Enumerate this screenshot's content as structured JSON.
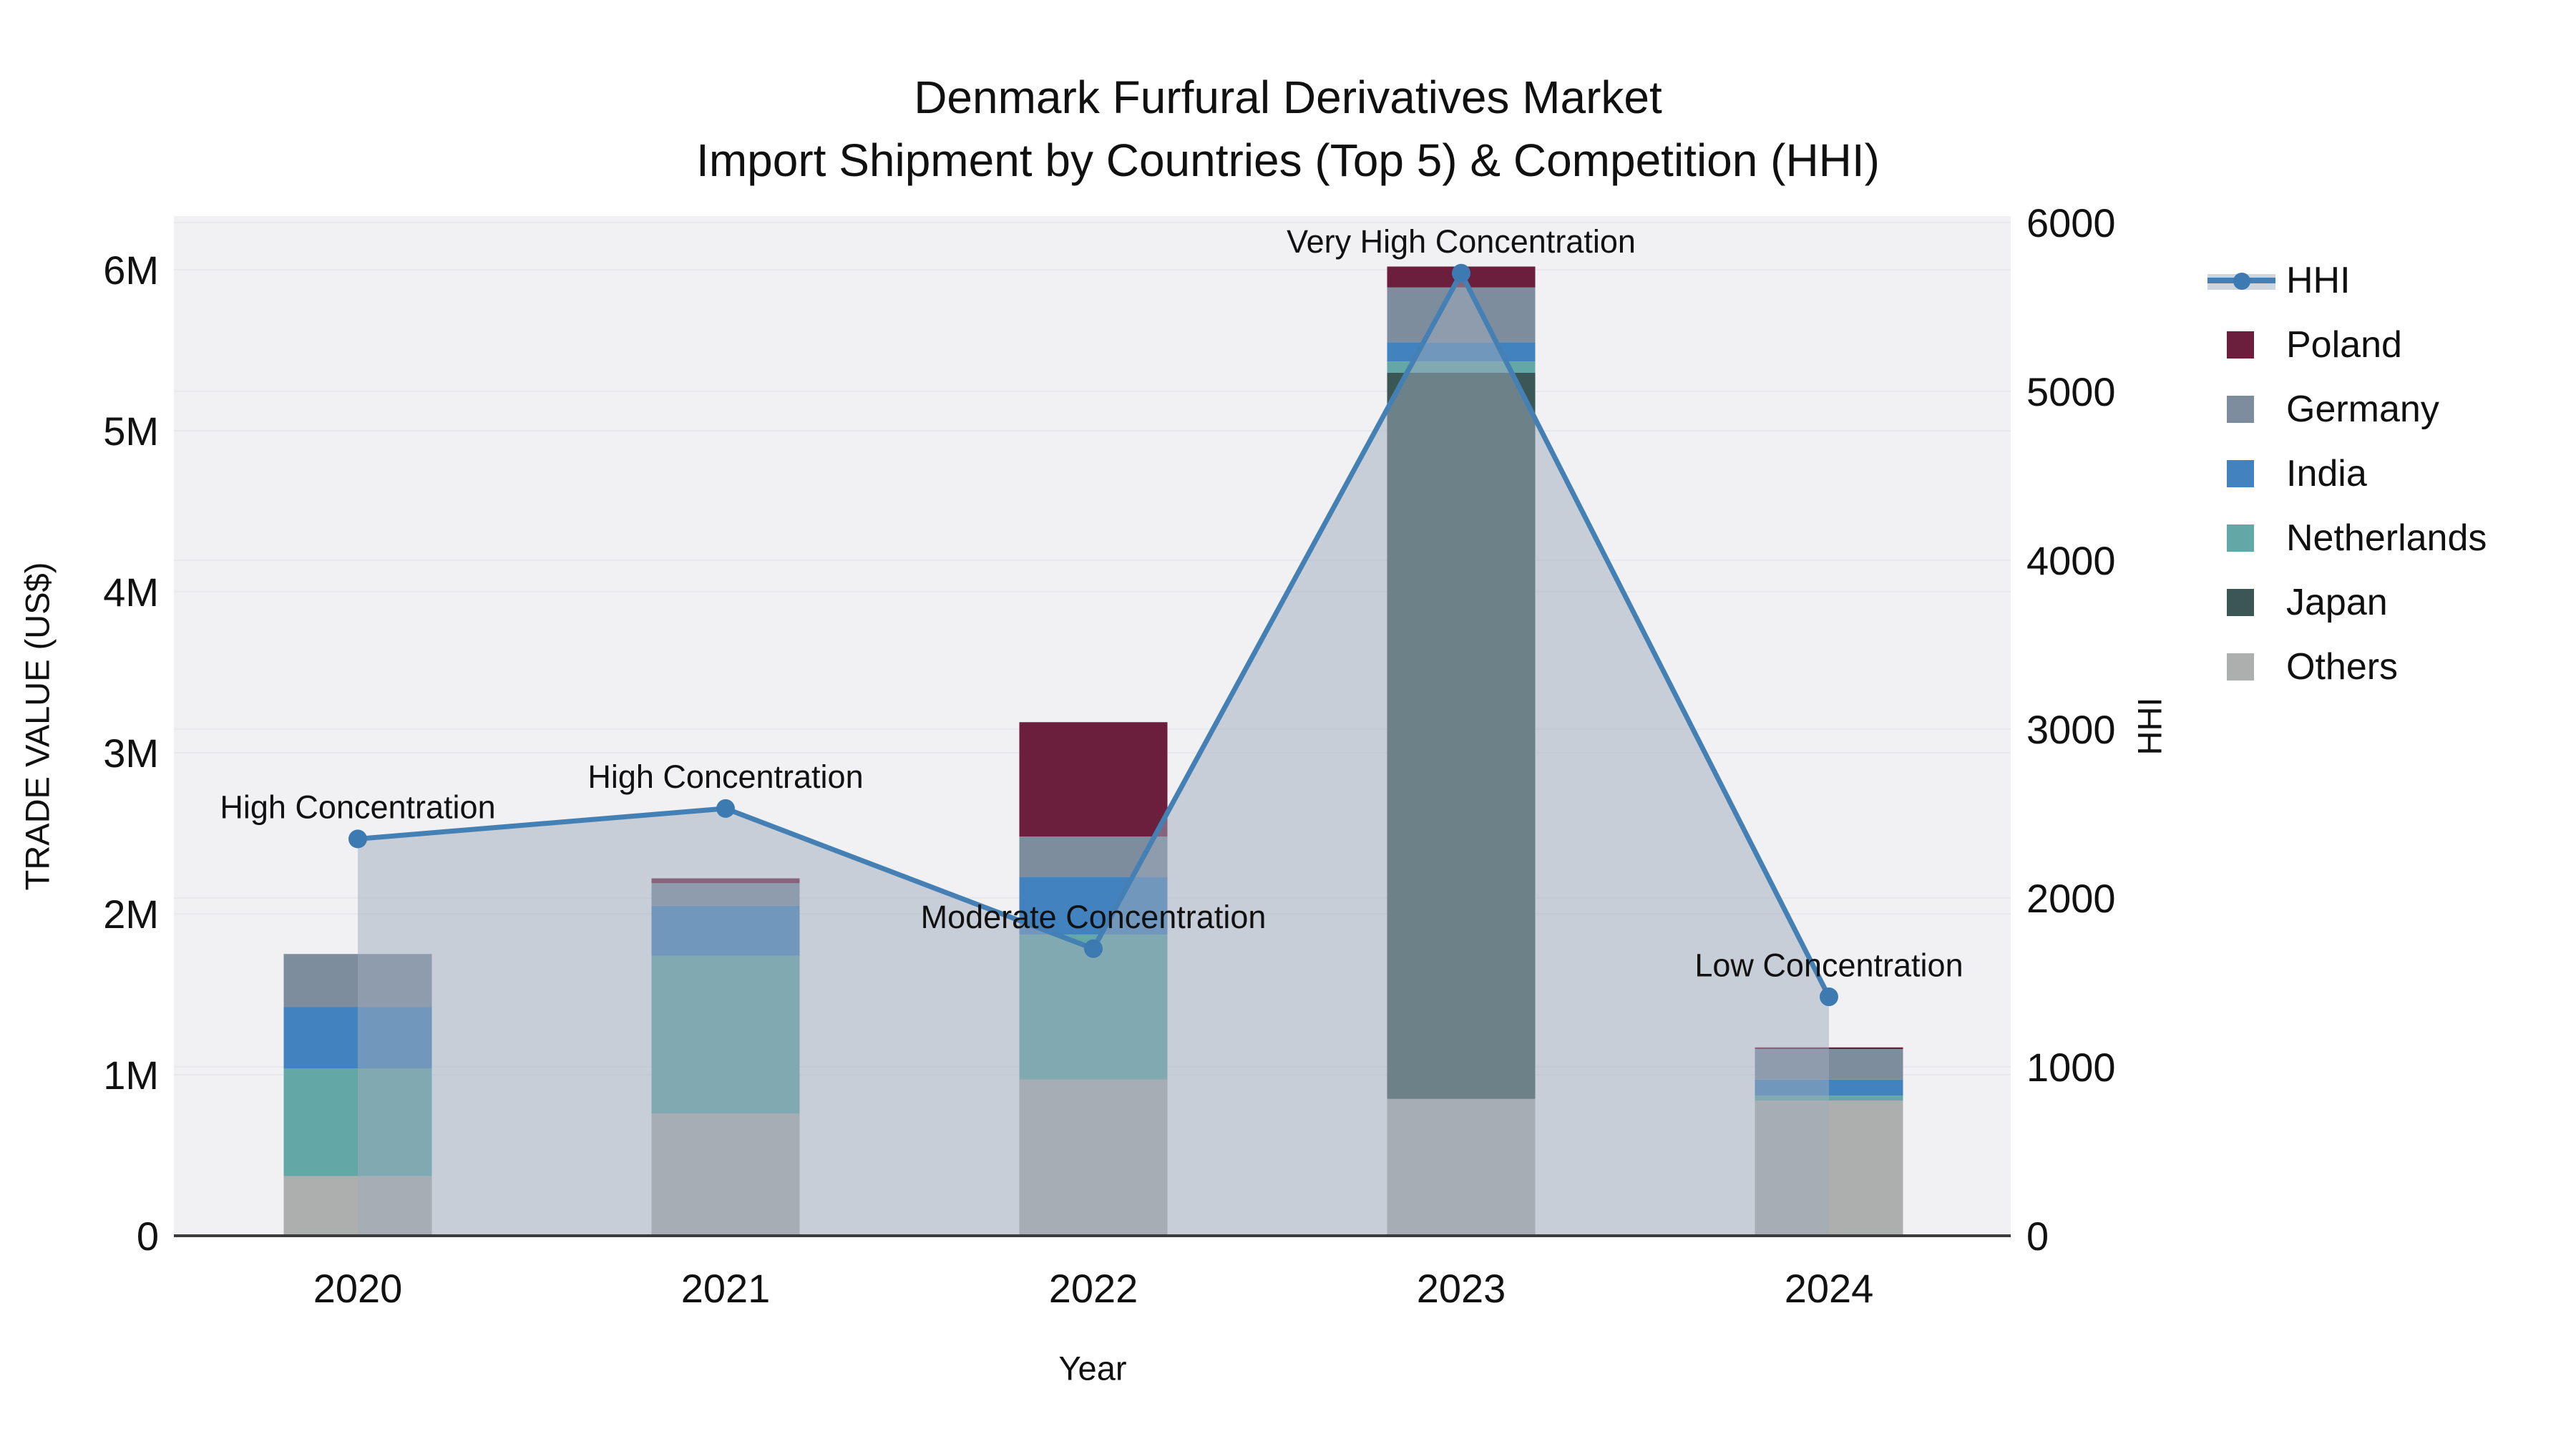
{
  "title": {
    "line1": "Denmark Furfural Derivatives Market",
    "line2": "Import Shipment by Countries (Top 5) & Competition (HHI)"
  },
  "chart_data": {
    "type": "bar+line",
    "subtype": "stacked bars (left axis) with HHI line + area fill (right axis)",
    "categories": [
      2020,
      2021,
      2022,
      2023,
      2024
    ],
    "bar_series": [
      {
        "name": "Others",
        "color": "#ADAFAF",
        "values": [
          370000,
          760000,
          970000,
          850000,
          840000
        ]
      },
      {
        "name": "Japan",
        "color": "#3A5755",
        "values": [
          0,
          0,
          0,
          4510000,
          0
        ]
      },
      {
        "name": "Netherlands",
        "color": "#63A7A6",
        "values": [
          670000,
          980000,
          900000,
          70000,
          30000
        ]
      },
      {
        "name": "India",
        "color": "#4282BE",
        "values": [
          380000,
          310000,
          360000,
          120000,
          100000
        ]
      },
      {
        "name": "Germany",
        "color": "#7E8D9E",
        "values": [
          330000,
          140000,
          250000,
          340000,
          190000
        ]
      },
      {
        "name": "Poland",
        "color": "#6C1F3C",
        "values": [
          0,
          30000,
          710000,
          130000,
          10000
        ]
      }
    ],
    "bar_totals": [
      1750000,
      2220000,
      3190000,
      6020000,
      1170000
    ],
    "line_series": {
      "name": "HHI",
      "color": "#4580B4",
      "marker_color": "#3E7AB2",
      "area_fill": "rgba(160,172,188,0.5)",
      "values": [
        2350,
        2530,
        1700,
        5700,
        1415
      ]
    },
    "annotations": [
      {
        "year": 2020,
        "text": "High Concentration"
      },
      {
        "year": 2021,
        "text": "High Concentration"
      },
      {
        "year": 2022,
        "text": "Moderate Concentration"
      },
      {
        "year": 2023,
        "text": "Very High Concentration"
      },
      {
        "year": 2024,
        "text": "Low Concentration"
      }
    ],
    "yaxis_left": {
      "title": "TRADE VALUE (US$)",
      "tick_labels": [
        "0",
        "1M",
        "2M",
        "3M",
        "4M",
        "5M",
        "6M"
      ],
      "tick_values": [
        0,
        1000000,
        2000000,
        3000000,
        4000000,
        5000000,
        6000000
      ],
      "range": [
        0,
        6330000
      ]
    },
    "yaxis_right": {
      "title": "HHI",
      "tick_labels": [
        "0",
        "1000",
        "2000",
        "3000",
        "4000",
        "5000",
        "6000"
      ],
      "tick_values": [
        0,
        1000,
        2000,
        3000,
        4000,
        5000,
        6000
      ],
      "range": [
        0,
        6040
      ]
    },
    "xaxis": {
      "title": "Year",
      "tick_labels": [
        "2020",
        "2021",
        "2022",
        "2023",
        "2024"
      ]
    },
    "legend": [
      "HHI",
      "Poland",
      "Germany",
      "India",
      "Netherlands",
      "Japan",
      "Others"
    ],
    "grid": true,
    "legend_position": "right",
    "plot_bg": "#F1F1F3",
    "grid_color": "#E7E8EB",
    "axis_line_color": "#3B3B3B",
    "text_color": "#111111"
  }
}
